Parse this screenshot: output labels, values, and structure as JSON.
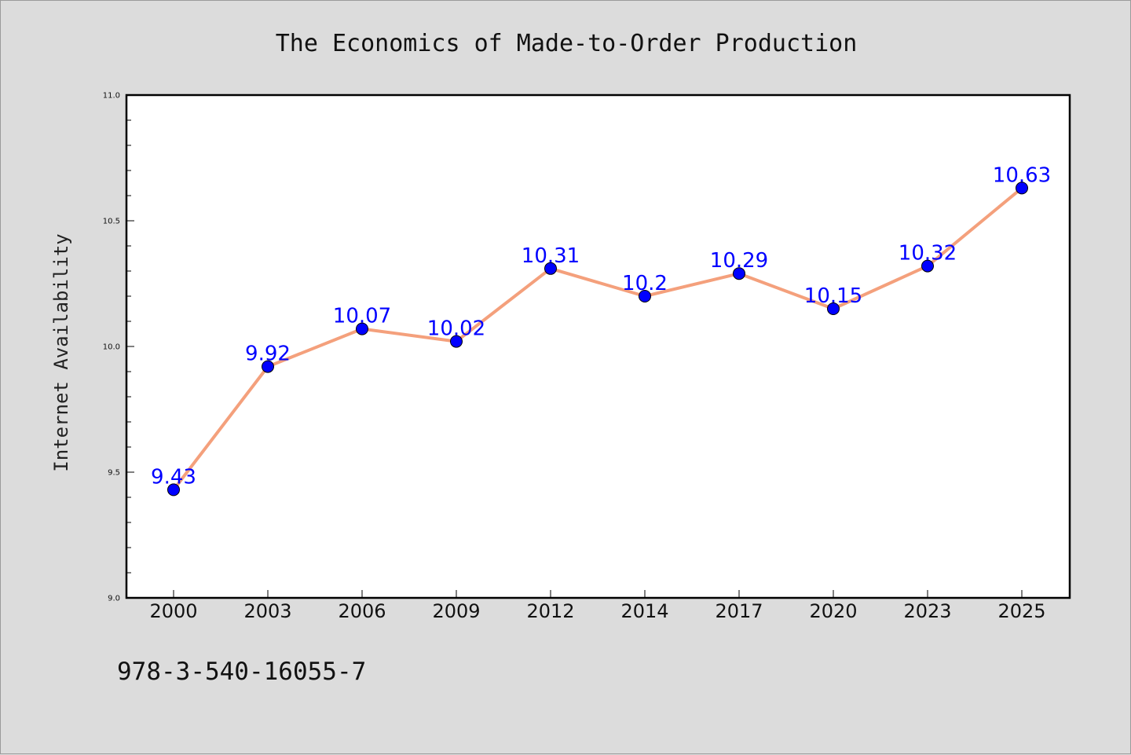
{
  "chart_data": {
    "type": "line",
    "title": "The Economics of Made-to-Order Production",
    "xlabel": "",
    "ylabel": "Internet Availability",
    "categories": [
      "2000",
      "2003",
      "2006",
      "2009",
      "2012",
      "2014",
      "2017",
      "2020",
      "2023",
      "2025"
    ],
    "series": [
      {
        "values": [
          9.43,
          9.92,
          10.07,
          10.02,
          10.31,
          10.2,
          10.29,
          10.15,
          10.32,
          10.63
        ],
        "data_labels": [
          "9.43",
          "9.92",
          "10.07",
          "10.02",
          "10.31",
          "10.2",
          "10.29",
          "10.15",
          "10.32",
          "10.63"
        ],
        "line_color": "#f4a07c",
        "marker_color": "#0000ff"
      }
    ],
    "ylim": [
      9.0,
      11.0
    ],
    "yticks": [
      "9.0",
      "9.5",
      "10.0",
      "10.5",
      "11.0"
    ],
    "grid": false,
    "legend": "none"
  },
  "footer": {
    "isbn": "978-3-540-16055-7"
  }
}
